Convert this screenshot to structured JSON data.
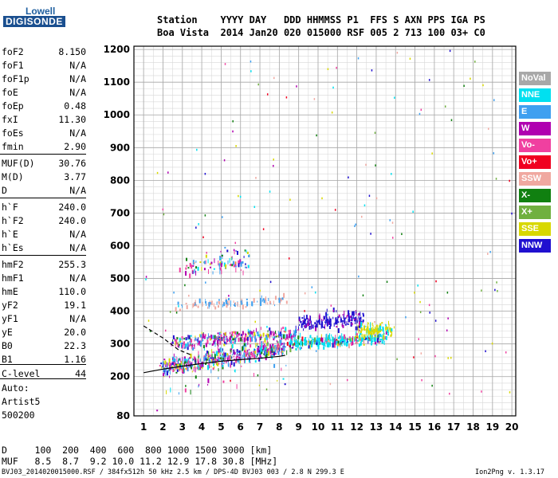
{
  "logo": {
    "top": "Lowell",
    "bottom": "DIGISONDE"
  },
  "header": {
    "row1": "Station    YYYY DAY   DDD HHMMSS P1  FFS S AXN PPS IGA PS",
    "row2": "Boa Vista  2014 Jan20 020 015000 RSF 005 2 713 100 03+ C0"
  },
  "params": [
    {
      "k": "foF2",
      "v": "8.150"
    },
    {
      "k": "foF1",
      "v": "N/A"
    },
    {
      "k": "foF1p",
      "v": "N/A"
    },
    {
      "k": "foE",
      "v": "N/A"
    },
    {
      "k": "foEp",
      "v": "0.48"
    },
    {
      "k": "fxI",
      "v": "11.30"
    },
    {
      "k": "foEs",
      "v": "N/A"
    },
    {
      "k": "fmin",
      "v": "2.90"
    },
    {
      "k": "MUF(D)",
      "v": "30.76"
    },
    {
      "k": "M(D)",
      "v": "3.77"
    },
    {
      "k": "D",
      "v": "N/A"
    },
    {
      "k": "h`F",
      "v": "240.0"
    },
    {
      "k": "h`F2",
      "v": "240.0"
    },
    {
      "k": "h`E",
      "v": "N/A"
    },
    {
      "k": "h`Es",
      "v": "N/A"
    },
    {
      "k": "hmF2",
      "v": "255.3"
    },
    {
      "k": "hmF1",
      "v": "N/A"
    },
    {
      "k": "hmE",
      "v": "110.0"
    },
    {
      "k": "yF2",
      "v": "19.1"
    },
    {
      "k": "yF1",
      "v": "N/A"
    },
    {
      "k": "yE",
      "v": "20.0"
    },
    {
      "k": "B0",
      "v": "22.3"
    },
    {
      "k": "B1",
      "v": "1.16"
    },
    {
      "k": "C-level",
      "v": "44"
    }
  ],
  "auto": {
    "l1": "Auto:",
    "l2": "Artist5",
    "l3": "500200"
  },
  "bottom": {
    "d_row": "D     100  200  400  600  800 1000 1500 3000 [km]",
    "muf_row": "MUF   8.5  8.7  9.2 10.0 11.2 12.9 17.8 30.8 [MHz]"
  },
  "footer": {
    "left": "BVJ03_2014020015000.RSF / 384fx512h 50 kHz 2.5 km / DPS-4D BVJ03 003 / 2.8 N 299.3 E",
    "right": "Ion2Png v. 1.3.17"
  },
  "legend": [
    {
      "label": "NoVal",
      "color": "#a8a8a8"
    },
    {
      "label": "NNE",
      "color": "#00e0f0"
    },
    {
      "label": "E",
      "color": "#3fa0f0"
    },
    {
      "label": "W",
      "color": "#b000b0"
    },
    {
      "label": "Vo-",
      "color": "#f040a0"
    },
    {
      "label": "Vo+",
      "color": "#f00020"
    },
    {
      "label": "SSW",
      "color": "#f0a8a0"
    },
    {
      "label": "X-",
      "color": "#108010"
    },
    {
      "label": "X+",
      "color": "#70b040"
    },
    {
      "label": "SSE",
      "color": "#d8d800"
    },
    {
      "label": "NNW",
      "color": "#2010d0"
    }
  ],
  "chart_data": {
    "type": "scatter",
    "xlabel": "",
    "ylabel": "",
    "xlim": [
      0.5,
      20.2
    ],
    "ylim": [
      80,
      1210
    ],
    "x_ticks": [
      1,
      2,
      3,
      4,
      5,
      6,
      7,
      8,
      9,
      10,
      11,
      12,
      13,
      14,
      15,
      16,
      17,
      18,
      19,
      20
    ],
    "y_ticks": [
      80,
      200,
      300,
      400,
      500,
      600,
      700,
      800,
      900,
      1000,
      1100,
      1200
    ],
    "grid": true,
    "legend_position": "right",
    "clusters": [
      {
        "name": "trace",
        "x": [
          1.9,
          8.3
        ],
        "y": [
          225,
          290
        ],
        "n": 520,
        "spread": [
          0.35,
          18
        ]
      },
      {
        "name": "trace-top",
        "x": [
          2.5,
          9.0
        ],
        "y": [
          300,
          335
        ],
        "n": 300,
        "spread": [
          0.3,
          14
        ]
      },
      {
        "name": "band-mid",
        "x": [
          8.5,
          13.5
        ],
        "y": [
          300,
          320
        ],
        "n": 330,
        "spread": [
          0.35,
          12
        ]
      },
      {
        "name": "band-high",
        "x": [
          9.0,
          12.3
        ],
        "y": [
          365,
          375
        ],
        "n": 180,
        "spread": [
          0.35,
          18
        ]
      },
      {
        "name": "blob-sse",
        "x": [
          12.0,
          13.8
        ],
        "y": [
          340,
          345
        ],
        "n": 110,
        "spread": [
          0.35,
          15
        ]
      },
      {
        "name": "spread-500",
        "x": [
          3.0,
          6.5
        ],
        "y": [
          530,
          560
        ],
        "n": 90,
        "spread": [
          0.4,
          22
        ]
      },
      {
        "name": "spread-430",
        "x": [
          2.5,
          8.3
        ],
        "y": [
          415,
          435
        ],
        "n": 100,
        "spread": [
          0.4,
          10
        ]
      },
      {
        "name": "scatter-low",
        "x": [
          1.8,
          9.0
        ],
        "y": [
          150,
          250
        ],
        "n": 30,
        "spread": [
          0.5,
          40
        ]
      }
    ],
    "curve_solid": {
      "x": [
        1,
        2,
        3,
        4,
        5,
        6,
        7,
        8,
        8.3
      ],
      "y": [
        212,
        223,
        232,
        240,
        247,
        252,
        256,
        262,
        265
      ]
    },
    "curve_dashed": {
      "x": [
        1,
        2,
        2.8,
        3.5
      ],
      "y": [
        355,
        318,
        282,
        265
      ]
    }
  }
}
